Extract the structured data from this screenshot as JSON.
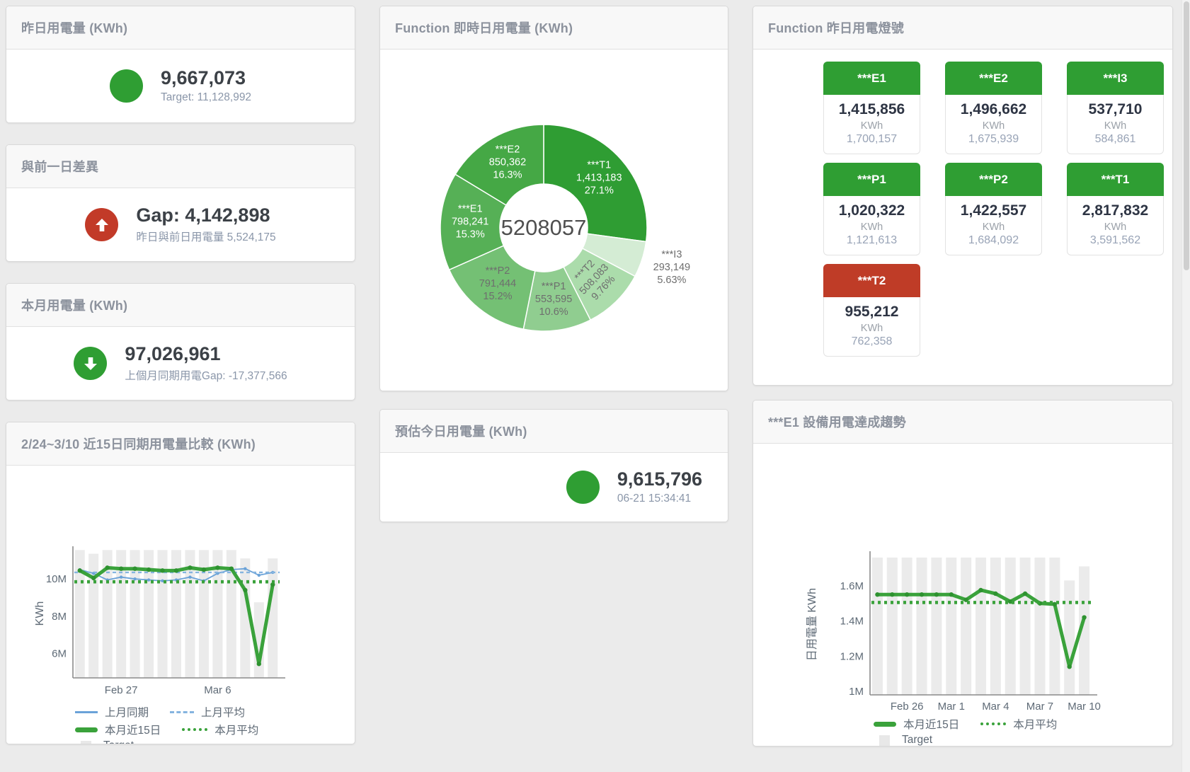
{
  "colors": {
    "green": "#2f9e33",
    "red": "#c23a28",
    "tile_red": "#bf3c27",
    "bar": "#ebebeb",
    "thin_blue": "#6aa2d8",
    "dashed_blue": "#85b4df",
    "line_green": "#3aa23b",
    "dot_green": "#2e9230"
  },
  "cards": {
    "yesterday": {
      "title": "昨日用電量 (KWh)",
      "value": "9,667,073",
      "subtext": "Target: 11,128,992"
    },
    "diff": {
      "title": "與前一日差異",
      "value": "Gap: 4,142,898",
      "subtext": "昨日與前日用電量 5,524,175"
    },
    "month": {
      "title": "本月用電量 (KWh)",
      "value": "97,026,961",
      "subtext": "上個月同期用電Gap: -17,377,566"
    },
    "compare": {
      "title": "2/24~3/10 近15日同期用電量比較 (KWh)"
    },
    "realtime": {
      "title": "Function 即時日用電量 (KWh)"
    },
    "estimate": {
      "title": "預估今日用電量 (KWh)",
      "value": "9,615,796",
      "subtext": "06-21 15:34:41"
    },
    "lights": {
      "title": "Function 昨日用電燈號",
      "tiles": [
        {
          "label": "***E1",
          "value": "1,415,856",
          "unit": "KWh",
          "target": "1,700,157",
          "status": "green"
        },
        {
          "label": "***E2",
          "value": "1,496,662",
          "unit": "KWh",
          "target": "1,675,939",
          "status": "green"
        },
        {
          "label": "***I3",
          "value": "537,710",
          "unit": "KWh",
          "target": "584,861",
          "status": "green"
        },
        {
          "label": "***P1",
          "value": "1,020,322",
          "unit": "KWh",
          "target": "1,121,613",
          "status": "green"
        },
        {
          "label": "***P2",
          "value": "1,422,557",
          "unit": "KWh",
          "target": "1,684,092",
          "status": "green"
        },
        {
          "label": "***T1",
          "value": "2,817,832",
          "unit": "KWh",
          "target": "3,591,562",
          "status": "green"
        },
        {
          "label": "***T2",
          "value": "955,212",
          "unit": "KWh",
          "target": "762,358",
          "status": "red"
        }
      ]
    },
    "trend": {
      "title": "***E1 設備用電達成趨勢"
    }
  },
  "chart_data": [
    {
      "id": "donut",
      "type": "pie",
      "title": "Function 即時日用電量 (KWh)",
      "center_total": "5208057",
      "legend_position": "none",
      "slices": [
        {
          "name": "***T1",
          "value": 1413183,
          "pct": "27.1%",
          "color": "#2f9d33",
          "text": "#ffffff"
        },
        {
          "name": "***I3",
          "value": 293149,
          "pct": "5.63%",
          "color": "#d4ecd4",
          "text": "#6e6e6e",
          "outside": true
        },
        {
          "name": "***T2",
          "value": 508083,
          "pct": "9.76%",
          "color": "#abdcab",
          "text": "#6e6e6e",
          "rotate": -47
        },
        {
          "name": "***P1",
          "value": 553595,
          "pct": "10.6%",
          "color": "#90cd90",
          "text": "#6e6e6e"
        },
        {
          "name": "***P2",
          "value": 791444,
          "pct": "15.2%",
          "color": "#74c074",
          "text": "#6e6e6e"
        },
        {
          "name": "***E1",
          "value": 798241,
          "pct": "15.3%",
          "color": "#56b056",
          "text": "#ffffff"
        },
        {
          "name": "***E2",
          "value": 850362,
          "pct": "16.3%",
          "color": "#45a845",
          "text": "#ffffff"
        }
      ]
    },
    {
      "id": "compare",
      "type": "line",
      "title": "2/24~3/10 近15日同期用電量比較 (KWh)",
      "ylabel": "KWh",
      "grid": false,
      "ylim": [
        4700000,
        11600000
      ],
      "yticks": [
        {
          "v": 6000000,
          "label": "6M"
        },
        {
          "v": 8000000,
          "label": "8M"
        },
        {
          "v": 10000000,
          "label": "10M"
        }
      ],
      "xticks": [
        {
          "i": 3,
          "label": "Feb 27"
        },
        {
          "i": 10,
          "label": "Mar 6"
        }
      ],
      "target_bars": [
        11550000,
        11350000,
        11550000,
        11550000,
        11550000,
        11550000,
        11550000,
        11550000,
        11550000,
        11550000,
        11550000,
        11550000,
        11100000,
        8750000,
        11100000
      ],
      "series": [
        {
          "name": "上月同期",
          "style": "thin_blue",
          "values": [
            10500000,
            10300000,
            9950000,
            10100000,
            10000000,
            9950000,
            9900000,
            9950000,
            10100000,
            9900000,
            10300000,
            10500000,
            10550000,
            10200000,
            10350000
          ]
        },
        {
          "name": "上月平均",
          "style": "dashed_blue",
          "const": 10350000
        },
        {
          "name": "本月近15日",
          "style": "thick_green",
          "values": [
            10450000,
            10050000,
            10600000,
            10550000,
            10550000,
            10500000,
            10450000,
            10450000,
            10600000,
            10500000,
            10600000,
            10550000,
            9400000,
            5450000,
            9700000
          ]
        },
        {
          "name": "本月平均",
          "style": "dotted_green",
          "const": 9850000
        }
      ],
      "legend_rows": [
        [
          "上月同期",
          "上月平均"
        ],
        [
          "本月近15日",
          "本月平均"
        ],
        [
          "Target"
        ]
      ]
    },
    {
      "id": "trend",
      "type": "line",
      "title": "***E1 設備用電達成趨勢",
      "ylabel": "日用電量 KWh",
      "grid": false,
      "ylim": [
        980000,
        1780000
      ],
      "yticks": [
        {
          "v": 1000000,
          "label": "1M"
        },
        {
          "v": 1200000,
          "label": "1.2M"
        },
        {
          "v": 1400000,
          "label": "1.4M"
        },
        {
          "v": 1600000,
          "label": "1.6M"
        }
      ],
      "xticks": [
        {
          "i": 2,
          "label": "Feb 26"
        },
        {
          "i": 5,
          "label": "Mar 1"
        },
        {
          "i": 8,
          "label": "Mar 4"
        },
        {
          "i": 11,
          "label": "Mar 7"
        },
        {
          "i": 14,
          "label": "Mar 10"
        }
      ],
      "target_bars": [
        1760000,
        1760000,
        1760000,
        1760000,
        1760000,
        1760000,
        1760000,
        1760000,
        1760000,
        1760000,
        1760000,
        1760000,
        1760000,
        1630000,
        1710000
      ],
      "series": [
        {
          "name": "本月近15日",
          "style": "thick_green",
          "values": [
            1550000,
            1550000,
            1550000,
            1550000,
            1550000,
            1550000,
            1520000,
            1575000,
            1555000,
            1510000,
            1555000,
            1500000,
            1495000,
            1140000,
            1420000
          ]
        },
        {
          "name": "本月平均",
          "style": "dotted_green",
          "const": 1505000
        }
      ],
      "legend_rows": [
        [
          "本月近15日",
          "本月平均"
        ],
        [
          "Target"
        ]
      ]
    }
  ],
  "legend_styles": {
    "上月同期": "mk-line",
    "上月平均": "mk-dash",
    "本月近15日": "mk-thick",
    "本月平均": "mk-dot",
    "Target": "mk-sq"
  }
}
